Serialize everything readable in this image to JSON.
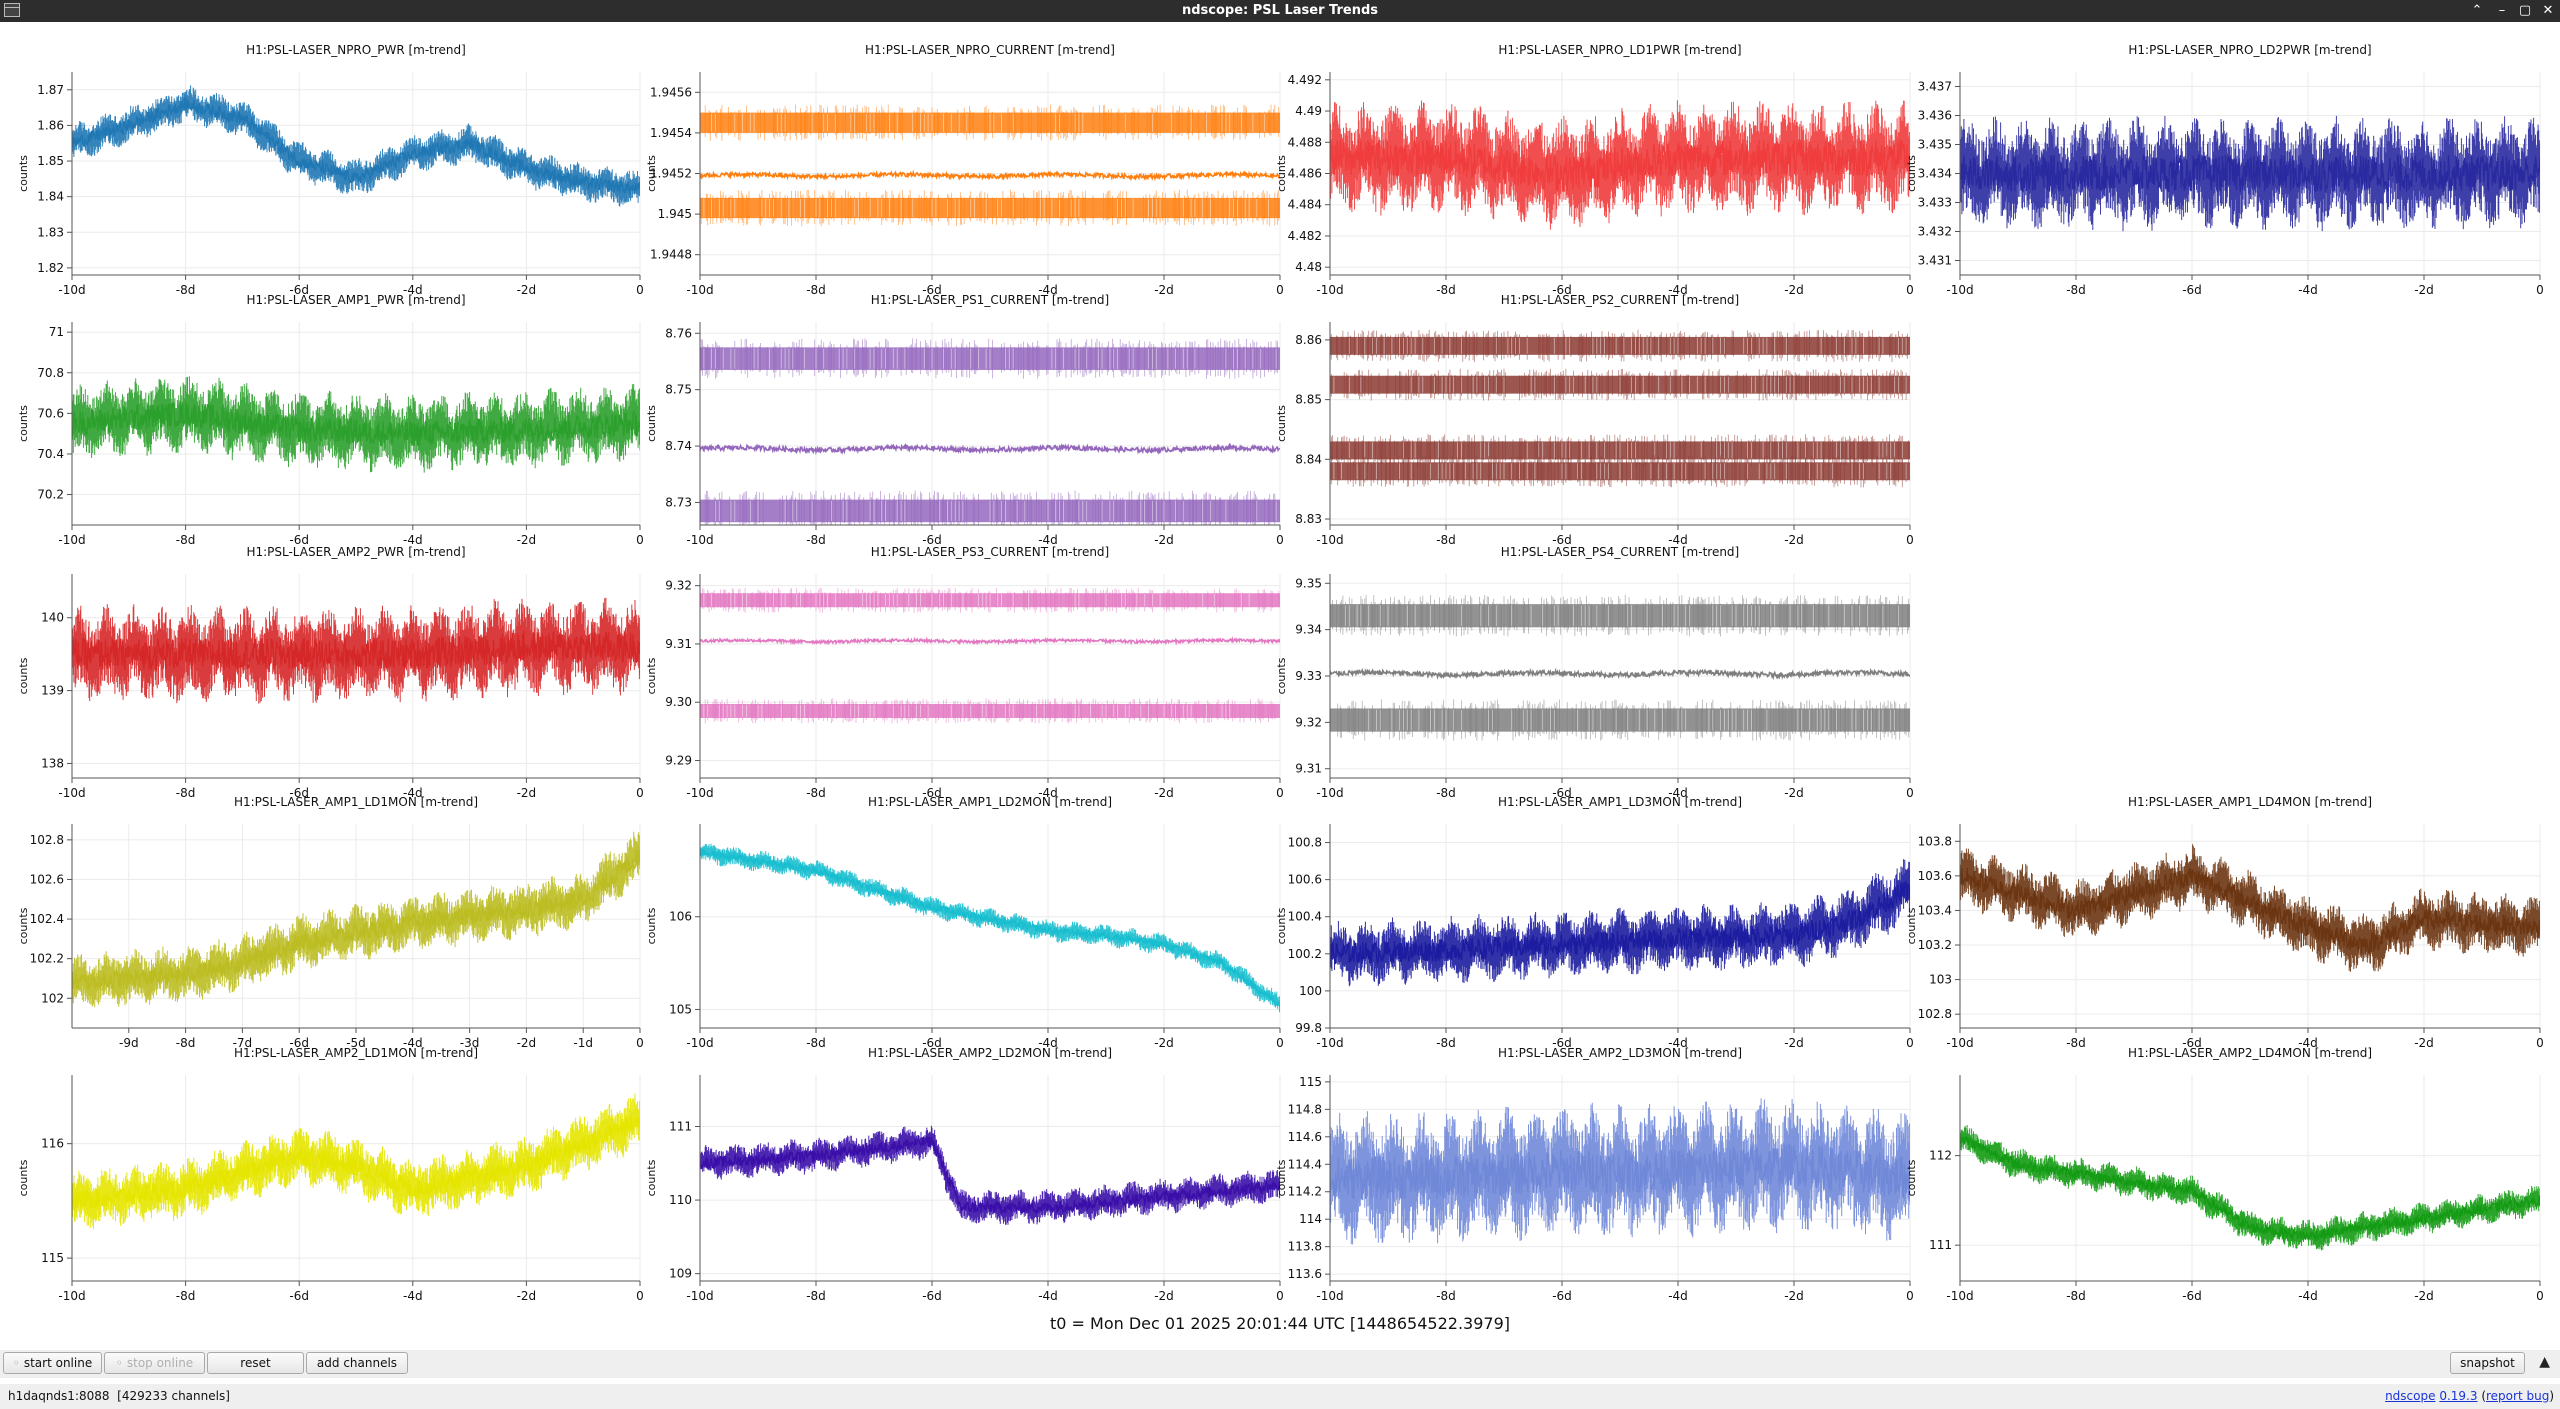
{
  "window": {
    "title": "ndscope: PSL Laser Trends",
    "buttons": [
      "⌃",
      "–",
      "▢",
      "✕"
    ]
  },
  "t0_text": "t0 = Mon Dec 01 2025 20:01:44 UTC [1448654522.3979]",
  "controls": {
    "start_online": "start online",
    "stop_online": "stop online",
    "reset": "reset",
    "add_channels": "add channels",
    "snapshot": "snapshot"
  },
  "status": {
    "server": "h1daqnds1:8088",
    "channels": "[429233 channels]",
    "app_link": "ndscope",
    "version": "0.19.3",
    "report_bug": "report bug"
  },
  "x_ticks_days": [
    "-10d",
    "-8d",
    "-6d",
    "-4d",
    "-2d",
    "0"
  ],
  "chart_data": [
    {
      "type": "line",
      "title": "H1:PSL-LASER_NPRO_PWR [m-trend]",
      "ylabel": "counts",
      "color": "#1f77b4",
      "ylim": [
        1.818,
        1.875
      ],
      "yticks": [
        "1.82",
        "1.83",
        "1.84",
        "1.85",
        "1.86",
        "1.87"
      ],
      "pattern": "wiggle",
      "x": [
        -10,
        -9,
        -8,
        -7,
        -6,
        -5,
        -4,
        -3,
        -2,
        -1,
        0
      ],
      "values": [
        1.855,
        1.86,
        1.866,
        1.862,
        1.85,
        1.845,
        1.852,
        1.855,
        1.848,
        1.844,
        1.842
      ]
    },
    {
      "type": "line",
      "title": "H1:PSL-LASER_NPRO_CURRENT [m-trend]",
      "ylabel": "counts",
      "color": "#ff7f0e",
      "ylim": [
        1.9447,
        1.9457
      ],
      "yticks": [
        "1.9448",
        "1.945",
        "1.9452",
        "1.9454",
        "1.9456"
      ],
      "pattern": "bands",
      "levels": [
        1.94545,
        1.94519,
        1.94503
      ],
      "noise": 5e-05
    },
    {
      "type": "line",
      "title": "H1:PSL-LASER_NPRO_LD1PWR [m-trend]",
      "ylabel": "counts",
      "color": "#f03c3c",
      "ylim": [
        4.4795,
        4.4925
      ],
      "yticks": [
        "4.48",
        "4.482",
        "4.484",
        "4.486",
        "4.488",
        "4.49",
        "4.492"
      ],
      "pattern": "noisy",
      "x": [
        -10,
        -8,
        -6,
        -4,
        -2,
        0
      ],
      "values": [
        4.487,
        4.487,
        4.486,
        4.487,
        4.487,
        4.487
      ],
      "noise": 0.003
    },
    {
      "type": "line",
      "title": "H1:PSL-LASER_NPRO_LD2PWR [m-trend]",
      "ylabel": "counts",
      "color": "#2a2aa0",
      "ylim": [
        3.4305,
        3.4375
      ],
      "yticks": [
        "3.431",
        "3.432",
        "3.433",
        "3.434",
        "3.435",
        "3.436",
        "3.437"
      ],
      "pattern": "noisy",
      "x": [
        -10,
        -8,
        -6,
        -4,
        -2,
        0
      ],
      "values": [
        3.434,
        3.434,
        3.434,
        3.434,
        3.434,
        3.434
      ],
      "noise": 0.0016
    },
    {
      "type": "line",
      "title": "H1:PSL-LASER_AMP1_PWR [m-trend]",
      "ylabel": "counts",
      "color": "#2ca02c",
      "ylim": [
        70.05,
        71.05
      ],
      "yticks": [
        "70.2",
        "70.4",
        "70.6",
        "70.8",
        "71"
      ],
      "pattern": "noisy",
      "x": [
        -10,
        -8,
        -6,
        -4,
        -2,
        0
      ],
      "values": [
        70.55,
        70.6,
        70.52,
        70.5,
        70.52,
        70.55
      ],
      "noise": 0.16
    },
    {
      "type": "line",
      "title": "H1:PSL-LASER_PS1_CURRENT [m-trend]",
      "ylabel": "counts",
      "color": "#9467bd",
      "ylim": [
        8.726,
        8.762
      ],
      "yticks": [
        "8.73",
        "8.74",
        "8.75",
        "8.76"
      ],
      "pattern": "bands",
      "levels": [
        8.7555,
        8.7395,
        8.7285
      ],
      "noise": 0.002
    },
    {
      "type": "line",
      "title": "H1:PSL-LASER_PS2_CURRENT [m-trend]",
      "ylabel": "counts",
      "color": "#8c3a32",
      "ylim": [
        8.829,
        8.863
      ],
      "yticks": [
        "8.83",
        "8.84",
        "8.85",
        "8.86"
      ],
      "pattern": "bands",
      "levels": [
        8.859,
        8.8525,
        8.8415,
        8.838
      ],
      "noise": 0.0015
    },
    {
      "type": "line",
      "title": "H1:PSL-LASER_AMP2_PWR [m-trend]",
      "ylabel": "counts",
      "color": "#d62728",
      "ylim": [
        137.8,
        140.6
      ],
      "yticks": [
        "138",
        "139",
        "140"
      ],
      "pattern": "noisy",
      "x": [
        -10,
        -8,
        -6,
        -4,
        -2,
        0
      ],
      "values": [
        139.5,
        139.5,
        139.5,
        139.5,
        139.6,
        139.6
      ],
      "noise": 0.55
    },
    {
      "type": "line",
      "title": "H1:PSL-LASER_PS3_CURRENT [m-trend]",
      "ylabel": "counts",
      "color": "#e377c2",
      "ylim": [
        9.287,
        9.322
      ],
      "yticks": [
        "9.29",
        "9.30",
        "9.31",
        "9.32"
      ],
      "pattern": "bands",
      "levels": [
        9.3175,
        9.3105,
        9.2985
      ],
      "noise": 0.0012
    },
    {
      "type": "line",
      "title": "H1:PSL-LASER_PS4_CURRENT [m-trend]",
      "ylabel": "counts",
      "color": "#7f7f7f",
      "ylim": [
        9.308,
        9.352
      ],
      "yticks": [
        "9.31",
        "9.32",
        "9.33",
        "9.34",
        "9.35"
      ],
      "pattern": "bands",
      "levels": [
        9.343,
        9.3305,
        9.3205
      ],
      "noise": 0.0025
    },
    {
      "type": "line",
      "title": "H1:PSL-LASER_AMP1_LD1MON [m-trend]",
      "ylabel": "counts",
      "color": "#bcbd22",
      "ylim": [
        101.85,
        102.88
      ],
      "yticks": [
        "102",
        "102.2",
        "102.4",
        "102.6",
        "102.8"
      ],
      "xticks": [
        "-9d",
        "-8d",
        "-7d",
        "-6d",
        "-5d",
        "-4d",
        "-3d",
        "-2d",
        "-1d",
        "0"
      ],
      "pattern": "noisy",
      "x": [
        -10,
        -8,
        -7,
        -6,
        -4,
        -2,
        -1,
        0
      ],
      "values": [
        102.08,
        102.12,
        102.18,
        102.28,
        102.38,
        102.45,
        102.5,
        102.72
      ],
      "noise": 0.12
    },
    {
      "type": "line",
      "title": "H1:PSL-LASER_AMP1_LD2MON [m-trend]",
      "ylabel": "counts",
      "color": "#17becf",
      "ylim": [
        104.8,
        107.0
      ],
      "yticks": [
        "105",
        "106"
      ],
      "pattern": "noisy",
      "x": [
        -10,
        -8,
        -6,
        -4,
        -3,
        -2,
        -1,
        0
      ],
      "values": [
        106.7,
        106.5,
        106.1,
        105.85,
        105.8,
        105.7,
        105.5,
        105.05
      ],
      "noise": 0.1
    },
    {
      "type": "line",
      "title": "H1:PSL-LASER_AMP1_LD3MON [m-trend]",
      "ylabel": "counts",
      "color": "#1c1ca0",
      "ylim": [
        99.8,
        100.9
      ],
      "yticks": [
        "99.8",
        "100",
        "100.2",
        "100.4",
        "100.6",
        "100.8"
      ],
      "pattern": "noisy",
      "x": [
        -10,
        -8,
        -6,
        -4,
        -2,
        -1,
        0
      ],
      "values": [
        100.2,
        100.22,
        100.25,
        100.28,
        100.3,
        100.38,
        100.55
      ],
      "noise": 0.15
    },
    {
      "type": "line",
      "title": "H1:PSL-LASER_AMP1_LD4MON [m-trend]",
      "ylabel": "counts",
      "color": "#6b3512",
      "ylim": [
        102.72,
        103.9
      ],
      "yticks": [
        "102.8",
        "103",
        "103.2",
        "103.4",
        "103.6",
        "103.8"
      ],
      "pattern": "noisy",
      "x": [
        -10,
        -8,
        -6,
        -4,
        -3,
        -2,
        0
      ],
      "values": [
        103.6,
        103.4,
        103.6,
        103.3,
        103.2,
        103.35,
        103.3
      ],
      "noise": 0.15
    },
    {
      "type": "line",
      "title": "H1:PSL-LASER_AMP2_LD1MON [m-trend]",
      "ylabel": "counts",
      "color": "#e5e500",
      "ylim": [
        114.8,
        116.6
      ],
      "yticks": [
        "115",
        "116"
      ],
      "pattern": "noisy",
      "x": [
        -10,
        -8,
        -6,
        -5,
        -4,
        -2,
        0
      ],
      "values": [
        115.5,
        115.6,
        115.9,
        115.8,
        115.6,
        115.8,
        116.2
      ],
      "noise": 0.22
    },
    {
      "type": "line",
      "title": "H1:PSL-LASER_AMP2_LD2MON [m-trend]",
      "ylabel": "counts",
      "color": "#3a0ea8",
      "ylim": [
        108.9,
        111.7
      ],
      "yticks": [
        "109",
        "110",
        "111"
      ],
      "pattern": "noisy",
      "x": [
        -10,
        -8,
        -6,
        -5.5,
        -4,
        -2,
        0
      ],
      "values": [
        110.5,
        110.6,
        110.8,
        109.9,
        109.9,
        110.05,
        110.2
      ],
      "noise": 0.2
    },
    {
      "type": "line",
      "title": "H1:PSL-LASER_AMP2_LD3MON [m-trend]",
      "ylabel": "counts",
      "color": "#7088d8",
      "ylim": [
        113.55,
        115.05
      ],
      "yticks": [
        "113.6",
        "113.8",
        "114",
        "114.2",
        "114.4",
        "114.6",
        "114.8",
        "115"
      ],
      "pattern": "noisy",
      "x": [
        -10,
        -8,
        -6,
        -4,
        -2,
        0
      ],
      "values": [
        114.3,
        114.3,
        114.35,
        114.35,
        114.4,
        114.3
      ],
      "noise": 0.4
    },
    {
      "type": "line",
      "title": "H1:PSL-LASER_AMP2_LD4MON [m-trend]",
      "ylabel": "counts",
      "color": "#139b13",
      "ylim": [
        110.6,
        112.9
      ],
      "yticks": [
        "111",
        "112"
      ],
      "pattern": "noisy",
      "x": [
        -10,
        -9,
        -8,
        -6,
        -5,
        -4,
        -2,
        0
      ],
      "values": [
        112.2,
        111.9,
        111.8,
        111.6,
        111.2,
        111.1,
        111.3,
        111.5
      ],
      "noise": 0.15
    }
  ]
}
